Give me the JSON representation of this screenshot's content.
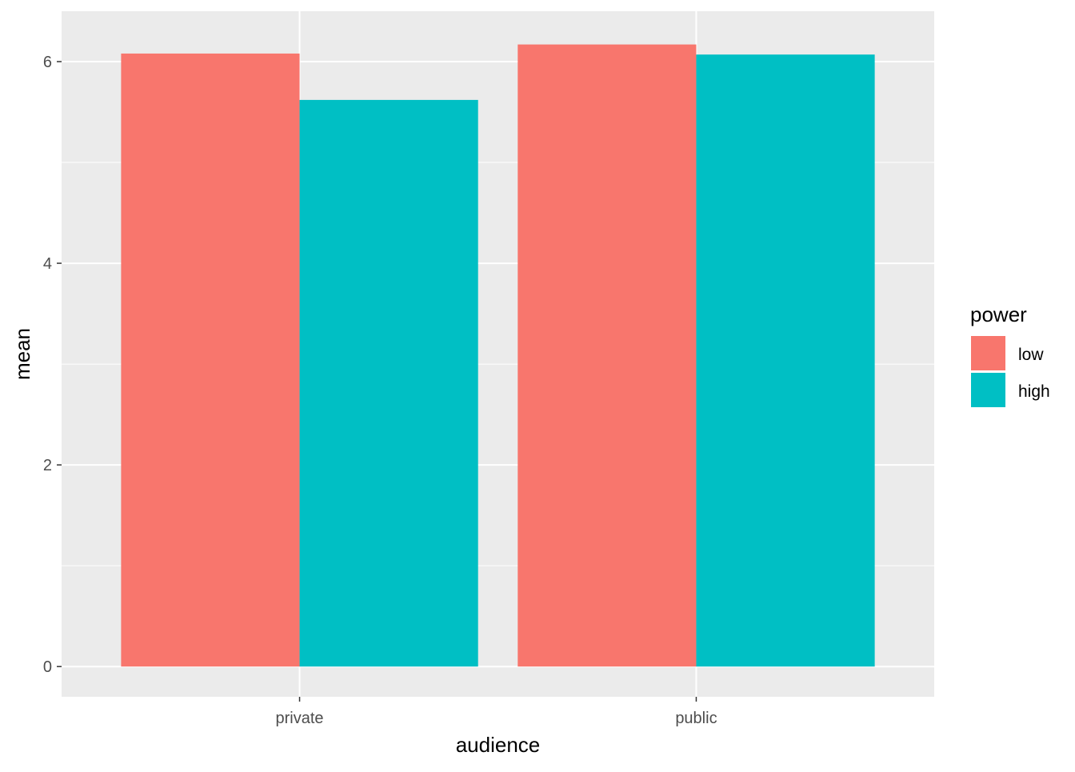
{
  "chart_data": {
    "type": "bar",
    "categories": [
      "private",
      "public"
    ],
    "series": [
      {
        "name": "low",
        "values": [
          6.08,
          6.17
        ],
        "color": "#F8766D"
      },
      {
        "name": "high",
        "values": [
          5.62,
          6.07
        ],
        "color": "#00BFC4"
      }
    ],
    "xlabel": "audience",
    "ylabel": "mean",
    "ylim": [
      -0.3,
      6.5
    ],
    "yticks": [
      0,
      2,
      4,
      6
    ],
    "grid": true,
    "legend": {
      "title": "power",
      "position": "right"
    },
    "panel_background": "#EBEBEB",
    "grid_color": "#FFFFFF"
  }
}
